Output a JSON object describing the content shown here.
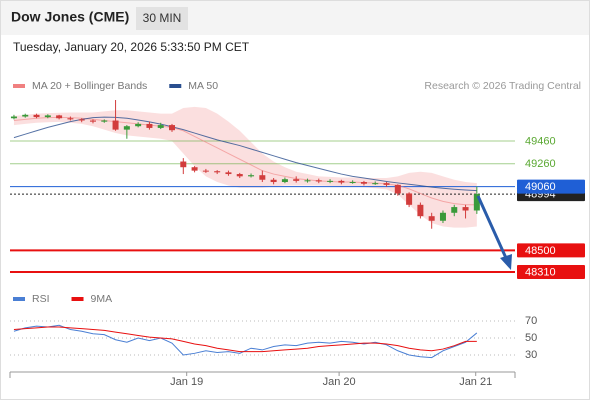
{
  "chart_data": {
    "type": "candlestick",
    "title": "Dow Jones (CME)",
    "interval": "30 MIN",
    "subtitle": "Tuesday, January 20, 2026 5:33:50 PM CET",
    "source": "Research © 2026 Trading Central",
    "xlim": [
      -0.35,
      44.38
    ],
    "xticks": [
      {
        "value": 15.3,
        "label": "Jan 19"
      },
      {
        "value": 28.8,
        "label": "Jan 20"
      },
      {
        "value": 40.9,
        "label": "Jan 21"
      }
    ],
    "ylim": [
      48196,
      49864
    ],
    "up_color": "#3a9a3a",
    "down_color": "#d23c3c",
    "candles": {
      "open": [
        49660,
        49675,
        49690,
        49670,
        49685,
        49660,
        49650,
        49640,
        49630,
        49640,
        49560,
        49590,
        49610,
        49575,
        49600,
        49280,
        49230,
        49200,
        49195,
        49185,
        49170,
        49150,
        49160,
        49120,
        49100,
        49125,
        49110,
        49115,
        49105,
        49110,
        49095,
        49100,
        49085,
        49090,
        49075,
        49000,
        48900,
        48800,
        48760,
        48830,
        48880,
        48850
      ],
      "high": [
        49690,
        49700,
        49700,
        49695,
        49690,
        49675,
        49660,
        49650,
        49650,
        49820,
        49600,
        49625,
        49630,
        49620,
        49610,
        49310,
        49240,
        49215,
        49205,
        49200,
        49180,
        49175,
        49200,
        49135,
        49140,
        49150,
        49130,
        49130,
        49125,
        49120,
        49115,
        49110,
        49105,
        49100,
        49080,
        49010,
        48920,
        48830,
        48850,
        48900,
        48900,
        49060
      ],
      "low": [
        49650,
        49665,
        49660,
        49660,
        49650,
        49640,
        49625,
        49615,
        49620,
        49550,
        49480,
        49580,
        49560,
        49565,
        49540,
        49170,
        49185,
        49180,
        49170,
        49155,
        49135,
        49140,
        49100,
        49080,
        49090,
        49095,
        49095,
        49090,
        49090,
        49080,
        49085,
        49070,
        49075,
        49060,
        48980,
        48880,
        48780,
        48690,
        48740,
        48800,
        48780,
        48820
      ],
      "close": [
        49675,
        49690,
        49670,
        49685,
        49660,
        49650,
        49640,
        49630,
        49640,
        49560,
        49590,
        49610,
        49575,
        49600,
        49555,
        49230,
        49200,
        49195,
        49185,
        49170,
        49150,
        49160,
        49120,
        49100,
        49125,
        49110,
        49115,
        49105,
        49110,
        49095,
        49100,
        49085,
        49090,
        49075,
        49000,
        48900,
        48800,
        48760,
        48830,
        48880,
        48850,
        48994
      ]
    },
    "series": [
      {
        "name": "MA 20 + Bollinger Bands",
        "color": "#f08080",
        "values": [
          49640,
          49650,
          49660,
          49665,
          49668,
          49665,
          49660,
          49650,
          49640,
          49630,
          49620,
          49610,
          49600,
          49590,
          49580,
          49550,
          49500,
          49450,
          49400,
          49350,
          49300,
          49250,
          49200,
          49170,
          49150,
          49130,
          49120,
          49110,
          49105,
          49100,
          49100,
          49095,
          49090,
          49085,
          49070,
          49040,
          49000,
          48960,
          48930,
          48910,
          48900,
          48900
        ],
        "upper": [
          49680,
          49690,
          49700,
          49705,
          49708,
          49710,
          49710,
          49710,
          49720,
          49730,
          49730,
          49720,
          49710,
          49700,
          49700,
          49750,
          49760,
          49750,
          49700,
          49630,
          49550,
          49450,
          49350,
          49280,
          49230,
          49190,
          49170,
          49150,
          49145,
          49140,
          49140,
          49135,
          49135,
          49135,
          49150,
          49180,
          49190,
          49180,
          49150,
          49120,
          49100,
          49090
        ],
        "lower": [
          49600,
          49610,
          49620,
          49625,
          49628,
          49620,
          49610,
          49590,
          49560,
          49530,
          49510,
          49500,
          49490,
          49480,
          49460,
          49350,
          49240,
          49150,
          49100,
          49070,
          49050,
          49050,
          49050,
          49060,
          49070,
          49070,
          49070,
          49070,
          49065,
          49060,
          49060,
          49055,
          49045,
          49035,
          48990,
          48900,
          48810,
          48740,
          48710,
          48700,
          48700,
          48710
        ]
      },
      {
        "name": "MA 50",
        "color": "#2a4f8f",
        "values": [
          49490,
          49520,
          49550,
          49580,
          49605,
          49630,
          49650,
          49665,
          49670,
          49668,
          49660,
          49645,
          49628,
          49608,
          49585,
          49560,
          49530,
          49500,
          49470,
          49445,
          49420,
          49390,
          49360,
          49330,
          49300,
          49270,
          49245,
          49220,
          49195,
          49170,
          49150,
          49135,
          49120,
          49105,
          49092,
          49080,
          49068,
          49055,
          49045,
          49037,
          49030,
          49025
        ]
      }
    ],
    "levels": [
      {
        "value": 49460,
        "color": "#5aa832",
        "boxed": false
      },
      {
        "value": 49260,
        "color": "#5aa832",
        "boxed": false
      },
      {
        "value": 48994,
        "color": "#222222",
        "boxed": true
      },
      {
        "value": 49060,
        "color": "#1f5fd6",
        "boxed": true
      },
      {
        "value": 48500,
        "color": "#e81010",
        "boxed": true
      },
      {
        "value": 48310,
        "color": "#e81010",
        "boxed": true
      }
    ],
    "rsi": {
      "ylim": [
        10,
        83
      ],
      "yticks": [
        70,
        50,
        30
      ],
      "series": [
        {
          "name": "RSI",
          "color": "#4a7fd4",
          "values": [
            58,
            62,
            64,
            63,
            65,
            60,
            58,
            55,
            54,
            48,
            45,
            50,
            47,
            50,
            44,
            30,
            32,
            35,
            33,
            34,
            32,
            38,
            36,
            40,
            42,
            41,
            44,
            45,
            44,
            46,
            45,
            43,
            45,
            42,
            35,
            30,
            28,
            27,
            35,
            40,
            45,
            56
          ]
        },
        {
          "name": "9MA",
          "color": "#e81010",
          "values": [
            60,
            61,
            62,
            63,
            63,
            62,
            61,
            60,
            59,
            57,
            55,
            53,
            51,
            50,
            49,
            46,
            43,
            41,
            38,
            36,
            34,
            34,
            34,
            35,
            36,
            37,
            38,
            40,
            41,
            42,
            43,
            44,
            44,
            43,
            41,
            38,
            36,
            35,
            37,
            41,
            46,
            46
          ]
        }
      ]
    }
  }
}
